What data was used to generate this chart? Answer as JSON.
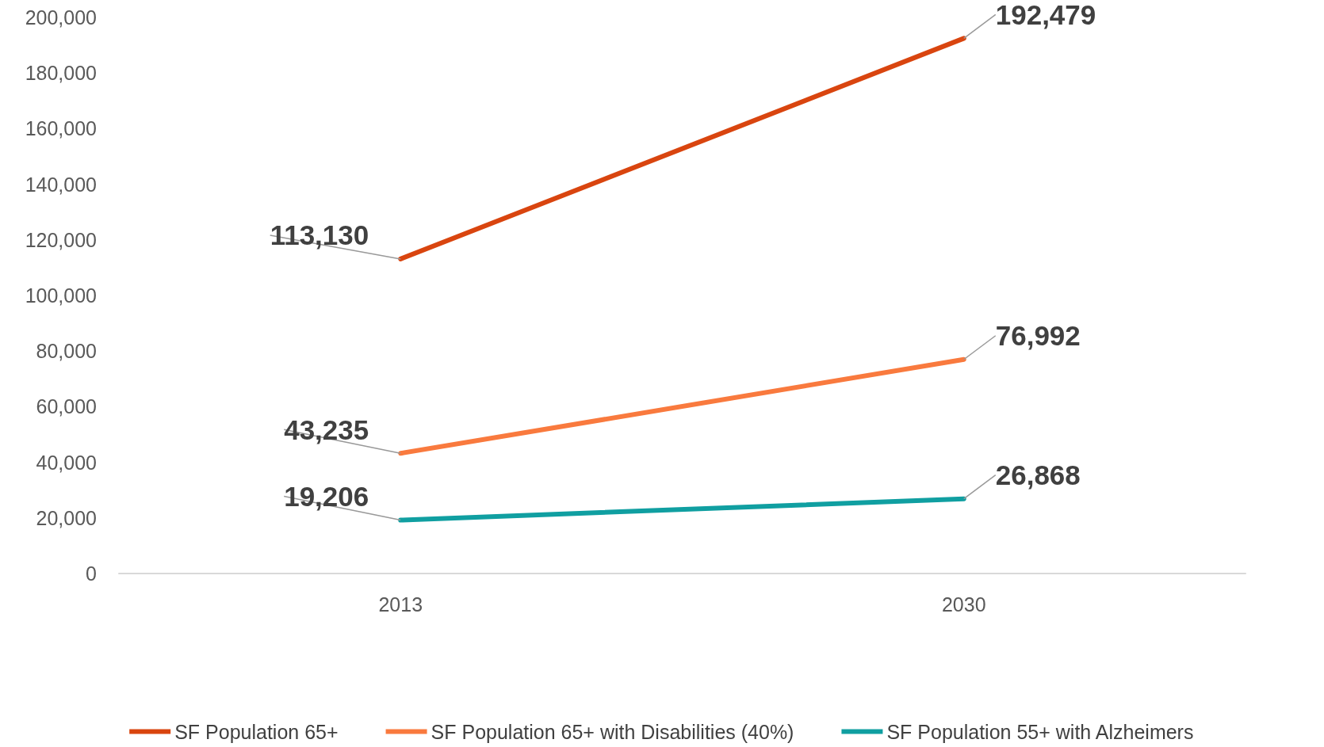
{
  "chart_data": {
    "type": "line",
    "categories": [
      "2013",
      "2030"
    ],
    "series": [
      {
        "name": "SF Population 65+",
        "color": "#d9450f",
        "values": [
          113130,
          192479
        ],
        "value_labels": [
          "113,130",
          "192,479"
        ]
      },
      {
        "name": "SF Population 65+ with Disabilities (40%)",
        "color": "#f97a3e",
        "values": [
          43235,
          76992
        ],
        "value_labels": [
          "43,235",
          "76,992"
        ]
      },
      {
        "name": "SF Population 55+ with Alzheimers",
        "color": "#109fa1",
        "values": [
          19206,
          26868
        ],
        "value_labels": [
          "19,206",
          "26,868"
        ]
      }
    ],
    "ylim": [
      0,
      200000
    ],
    "yticks": [
      0,
      {
        "value": 20000,
        "label": "20,000"
      },
      {
        "value": 40000,
        "label": "40,000"
      },
      {
        "value": 60000,
        "label": "60,000"
      },
      {
        "value": 80000,
        "label": "80,000"
      },
      {
        "value": 100000,
        "label": "100,000"
      },
      {
        "value": 120000,
        "label": "120,000"
      },
      {
        "value": 140000,
        "label": "140,000"
      },
      {
        "value": 160000,
        "label": "160,000"
      },
      {
        "value": 180000,
        "label": "180,000"
      },
      {
        "value": 200000,
        "label": "200,000"
      }
    ],
    "grid": false,
    "legend": "bottom",
    "marker": "none",
    "line_style": "solid"
  }
}
